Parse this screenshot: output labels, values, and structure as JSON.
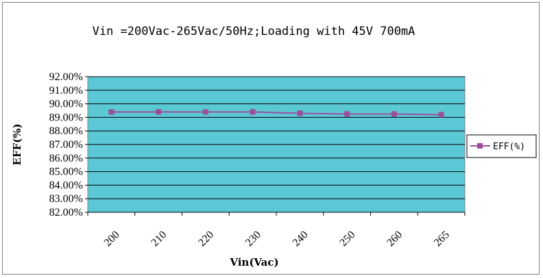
{
  "chart_data": {
    "type": "line",
    "title": "Vin =200Vac-265Vac/50Hz;Loading with 45V 700mA",
    "xlabel": "Vin(Vac)",
    "ylabel": "EFF(%)",
    "categories": [
      "200",
      "210",
      "220",
      "230",
      "240",
      "250",
      "260",
      "265"
    ],
    "y_tick_labels": [
      "92.00%",
      "91.00%",
      "90.00%",
      "89.00%",
      "88.00%",
      "87.00%",
      "86.00%",
      "85.00%",
      "84.00%",
      "83.00%",
      "82.00%"
    ],
    "ylim": [
      82,
      92
    ],
    "grid": true,
    "legend_position": "right",
    "series": [
      {
        "name": "EFF(%)",
        "values": [
          89.4,
          89.4,
          89.4,
          89.4,
          89.3,
          89.25,
          89.25,
          89.2
        ]
      }
    ],
    "colors": {
      "plot_background": "#5bc8d6",
      "line": "#9b4f9b",
      "grid": "#000000"
    }
  }
}
